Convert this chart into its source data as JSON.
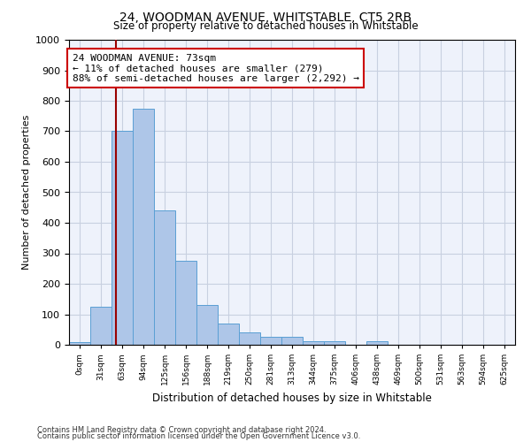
{
  "title": "24, WOODMAN AVENUE, WHITSTABLE, CT5 2RB",
  "subtitle": "Size of property relative to detached houses in Whitstable",
  "xlabel": "Distribution of detached houses by size in Whitstable",
  "ylabel": "Number of detached properties",
  "categories": [
    "0sqm",
    "31sqm",
    "63sqm",
    "94sqm",
    "125sqm",
    "156sqm",
    "188sqm",
    "219sqm",
    "250sqm",
    "281sqm",
    "313sqm",
    "344sqm",
    "375sqm",
    "406sqm",
    "438sqm",
    "469sqm",
    "500sqm",
    "531sqm",
    "563sqm",
    "594sqm",
    "625sqm"
  ],
  "bar_heights": [
    8,
    125,
    700,
    775,
    440,
    275,
    130,
    70,
    40,
    25,
    25,
    13,
    13,
    0,
    13,
    0,
    0,
    0,
    0,
    0,
    0
  ],
  "bar_color": "#aec6e8",
  "bar_edge_color": "#5a9fd4",
  "ylim": [
    0,
    1000
  ],
  "yticks": [
    0,
    100,
    200,
    300,
    400,
    500,
    600,
    700,
    800,
    900,
    1000
  ],
  "vline_x": 2.22,
  "vline_color": "#990000",
  "annotation_text": "24 WOODMAN AVENUE: 73sqm\n← 11% of detached houses are smaller (279)\n88% of semi-detached houses are larger (2,292) →",
  "annotation_box_color": "#cc0000",
  "footer_line1": "Contains HM Land Registry data © Crown copyright and database right 2024.",
  "footer_line2": "Contains public sector information licensed under the Open Government Licence v3.0.",
  "grid_color": "#c8d0e0",
  "background_color": "#eef2fb"
}
